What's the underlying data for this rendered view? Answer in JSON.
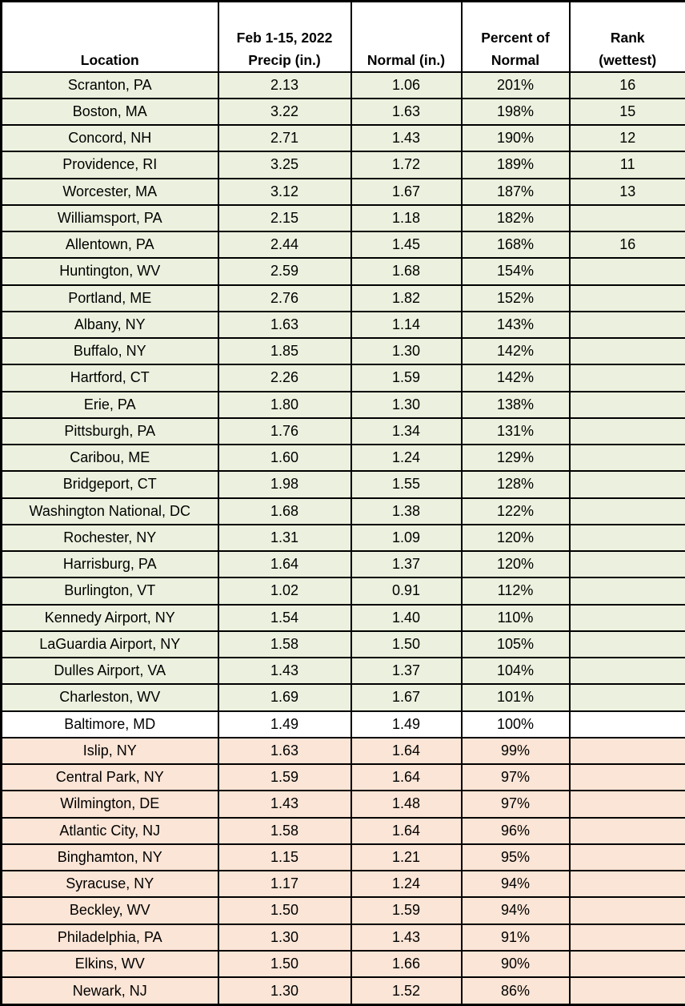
{
  "colors": {
    "above_normal_bg": "#EBF1DE",
    "at_normal_bg": "#FFFFFF",
    "below_normal_bg": "#FBE5D6",
    "border": "#000000",
    "text": "#000000"
  },
  "header": {
    "cols": [
      {
        "l1": "",
        "l2": "Location"
      },
      {
        "l1": "Feb 1-15, 2022",
        "l2": "Precip (in.)"
      },
      {
        "l1": "",
        "l2": "Normal (in.)"
      },
      {
        "l1": "Percent of",
        "l2": "Normal"
      },
      {
        "l1": "Rank",
        "l2": "(wettest)"
      }
    ]
  },
  "chart_data": {
    "type": "table",
    "columns": [
      "Location",
      "Feb 1-15, 2022 Precip (in.)",
      "Normal (in.)",
      "Percent of Normal",
      "Rank (wettest)"
    ],
    "legend_note_row_colors": {
      "above": "percent of normal above 100% (green rows)",
      "normal": "percent of normal exactly 100% (white row)",
      "below": "percent of normal below 100% (tan rows)"
    },
    "rows": [
      {
        "location": "Scranton, PA",
        "precip": "2.13",
        "normal": "1.06",
        "percent": "201%",
        "rank": "16",
        "status": "above"
      },
      {
        "location": "Boston, MA",
        "precip": "3.22",
        "normal": "1.63",
        "percent": "198%",
        "rank": "15",
        "status": "above"
      },
      {
        "location": "Concord, NH",
        "precip": "2.71",
        "normal": "1.43",
        "percent": "190%",
        "rank": "12",
        "status": "above"
      },
      {
        "location": "Providence, RI",
        "precip": "3.25",
        "normal": "1.72",
        "percent": "189%",
        "rank": "11",
        "status": "above"
      },
      {
        "location": "Worcester, MA",
        "precip": "3.12",
        "normal": "1.67",
        "percent": "187%",
        "rank": "13",
        "status": "above"
      },
      {
        "location": "Williamsport, PA",
        "precip": "2.15",
        "normal": "1.18",
        "percent": "182%",
        "rank": "",
        "status": "above"
      },
      {
        "location": "Allentown, PA",
        "precip": "2.44",
        "normal": "1.45",
        "percent": "168%",
        "rank": "16",
        "status": "above"
      },
      {
        "location": "Huntington, WV",
        "precip": "2.59",
        "normal": "1.68",
        "percent": "154%",
        "rank": "",
        "status": "above"
      },
      {
        "location": "Portland, ME",
        "precip": "2.76",
        "normal": "1.82",
        "percent": "152%",
        "rank": "",
        "status": "above"
      },
      {
        "location": "Albany, NY",
        "precip": "1.63",
        "normal": "1.14",
        "percent": "143%",
        "rank": "",
        "status": "above"
      },
      {
        "location": "Buffalo, NY",
        "precip": "1.85",
        "normal": "1.30",
        "percent": "142%",
        "rank": "",
        "status": "above"
      },
      {
        "location": "Hartford, CT",
        "precip": "2.26",
        "normal": "1.59",
        "percent": "142%",
        "rank": "",
        "status": "above"
      },
      {
        "location": "Erie, PA",
        "precip": "1.80",
        "normal": "1.30",
        "percent": "138%",
        "rank": "",
        "status": "above"
      },
      {
        "location": "Pittsburgh, PA",
        "precip": "1.76",
        "normal": "1.34",
        "percent": "131%",
        "rank": "",
        "status": "above"
      },
      {
        "location": "Caribou, ME",
        "precip": "1.60",
        "normal": "1.24",
        "percent": "129%",
        "rank": "",
        "status": "above"
      },
      {
        "location": "Bridgeport, CT",
        "precip": "1.98",
        "normal": "1.55",
        "percent": "128%",
        "rank": "",
        "status": "above"
      },
      {
        "location": "Washington National, DC",
        "precip": "1.68",
        "normal": "1.38",
        "percent": "122%",
        "rank": "",
        "status": "above"
      },
      {
        "location": "Rochester, NY",
        "precip": "1.31",
        "normal": "1.09",
        "percent": "120%",
        "rank": "",
        "status": "above"
      },
      {
        "location": "Harrisburg, PA",
        "precip": "1.64",
        "normal": "1.37",
        "percent": "120%",
        "rank": "",
        "status": "above"
      },
      {
        "location": "Burlington, VT",
        "precip": "1.02",
        "normal": "0.91",
        "percent": "112%",
        "rank": "",
        "status": "above"
      },
      {
        "location": "Kennedy Airport, NY",
        "precip": "1.54",
        "normal": "1.40",
        "percent": "110%",
        "rank": "",
        "status": "above"
      },
      {
        "location": "LaGuardia Airport, NY",
        "precip": "1.58",
        "normal": "1.50",
        "percent": "105%",
        "rank": "",
        "status": "above"
      },
      {
        "location": "Dulles Airport, VA",
        "precip": "1.43",
        "normal": "1.37",
        "percent": "104%",
        "rank": "",
        "status": "above"
      },
      {
        "location": "Charleston, WV",
        "precip": "1.69",
        "normal": "1.67",
        "percent": "101%",
        "rank": "",
        "status": "above"
      },
      {
        "location": "Baltimore, MD",
        "precip": "1.49",
        "normal": "1.49",
        "percent": "100%",
        "rank": "",
        "status": "normal"
      },
      {
        "location": "Islip, NY",
        "precip": "1.63",
        "normal": "1.64",
        "percent": "99%",
        "rank": "",
        "status": "below"
      },
      {
        "location": "Central Park, NY",
        "precip": "1.59",
        "normal": "1.64",
        "percent": "97%",
        "rank": "",
        "status": "below"
      },
      {
        "location": "Wilmington, DE",
        "precip": "1.43",
        "normal": "1.48",
        "percent": "97%",
        "rank": "",
        "status": "below"
      },
      {
        "location": "Atlantic City, NJ",
        "precip": "1.58",
        "normal": "1.64",
        "percent": "96%",
        "rank": "",
        "status": "below"
      },
      {
        "location": "Binghamton, NY",
        "precip": "1.15",
        "normal": "1.21",
        "percent": "95%",
        "rank": "",
        "status": "below"
      },
      {
        "location": "Syracuse, NY",
        "precip": "1.17",
        "normal": "1.24",
        "percent": "94%",
        "rank": "",
        "status": "below"
      },
      {
        "location": "Beckley, WV",
        "precip": "1.50",
        "normal": "1.59",
        "percent": "94%",
        "rank": "",
        "status": "below"
      },
      {
        "location": "Philadelphia, PA",
        "precip": "1.30",
        "normal": "1.43",
        "percent": "91%",
        "rank": "",
        "status": "below"
      },
      {
        "location": "Elkins, WV",
        "precip": "1.50",
        "normal": "1.66",
        "percent": "90%",
        "rank": "",
        "status": "below"
      },
      {
        "location": "Newark, NJ",
        "precip": "1.30",
        "normal": "1.52",
        "percent": "86%",
        "rank": "",
        "status": "below"
      }
    ]
  }
}
